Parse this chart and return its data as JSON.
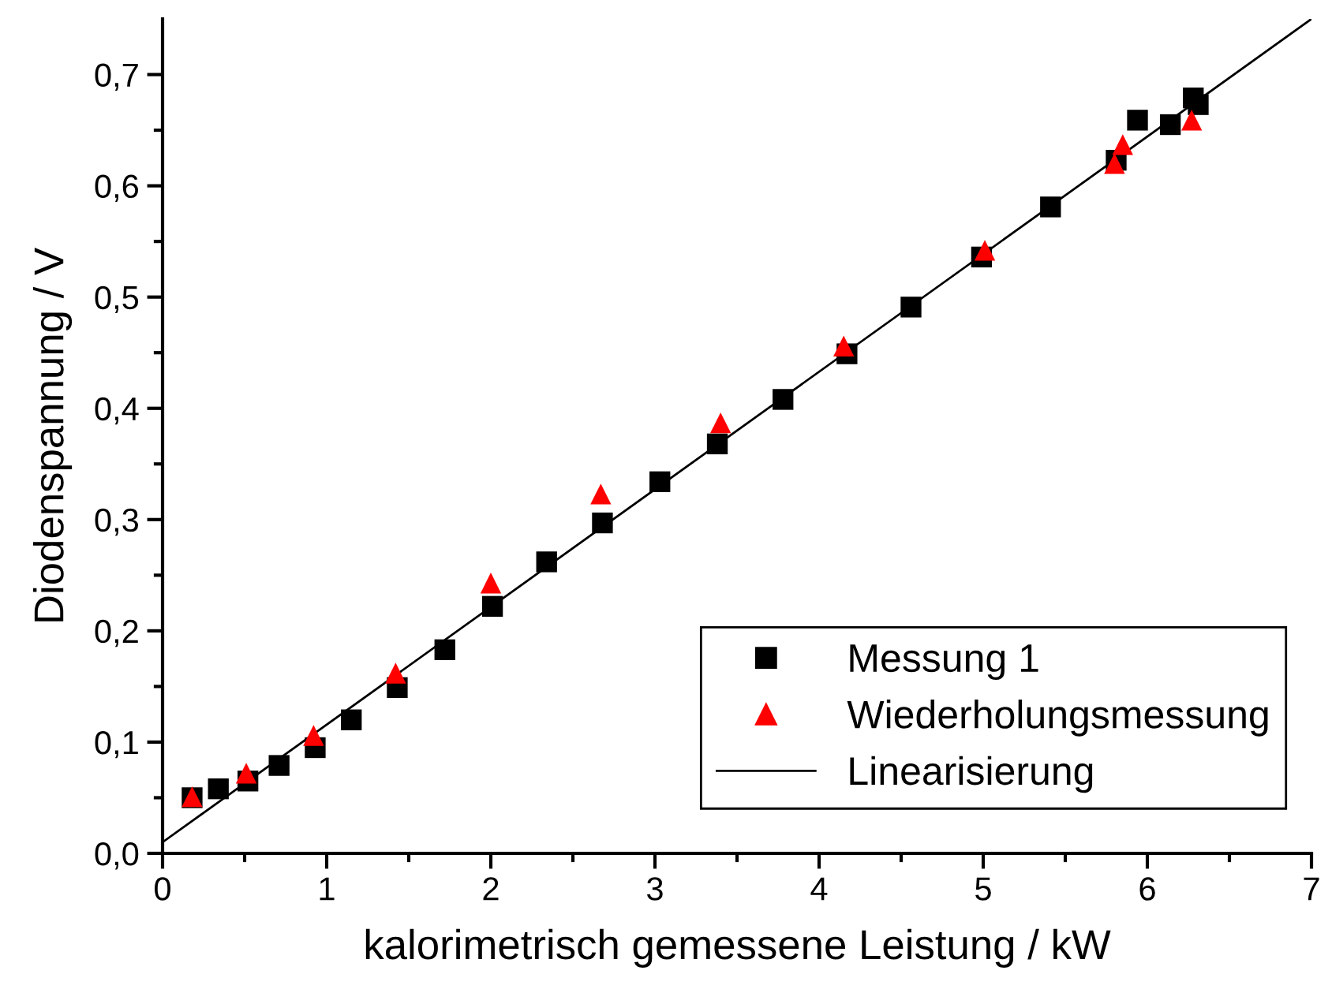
{
  "chart_data": {
    "type": "scatter",
    "xlabel": "kalorimetrisch gemessene Leistung / kW",
    "ylabel": "Diodenspannung / V",
    "series": [
      {
        "name": "Messung 1",
        "color": "#000000",
        "marker": "square",
        "x": [
          0.18,
          0.34,
          0.52,
          0.71,
          0.93,
          1.15,
          1.43,
          1.72,
          2.01,
          2.34,
          2.68,
          3.03,
          3.38,
          3.78,
          4.17,
          4.56,
          4.99,
          5.41,
          5.81,
          5.94,
          6.14,
          6.28,
          6.31
        ],
        "values": [
          0.05,
          0.058,
          0.065,
          0.079,
          0.095,
          0.12,
          0.149,
          0.183,
          0.222,
          0.262,
          0.297,
          0.334,
          0.368,
          0.408,
          0.449,
          0.491,
          0.536,
          0.581,
          0.623,
          0.659,
          0.655,
          0.679,
          0.673
        ]
      },
      {
        "name": "Wiederholungsmessung",
        "color": "#ff0000",
        "marker": "triangle",
        "x": [
          0.18,
          0.51,
          0.92,
          1.42,
          2.0,
          2.67,
          3.4,
          4.15,
          5.01,
          5.8,
          5.85,
          6.27
        ],
        "values": [
          0.051,
          0.072,
          0.106,
          0.162,
          0.243,
          0.323,
          0.387,
          0.456,
          0.542,
          0.62,
          0.637,
          0.659
        ]
      },
      {
        "name": "Linearisierung",
        "type": "line",
        "color": "#000000",
        "marker": "none",
        "line_style": "solid",
        "x": [
          0,
          7
        ],
        "values": [
          0.01,
          0.75
        ]
      }
    ],
    "xlim": [
      0,
      7
    ],
    "ylim": [
      0,
      0.75
    ],
    "xticks": [
      0,
      {
        "value": 0.5,
        "label": null
      },
      1,
      {
        "value": 1.5,
        "label": null
      },
      2,
      {
        "value": 2.5,
        "label": null
      },
      3,
      {
        "value": 3.5,
        "label": null
      },
      4,
      {
        "value": 4.5,
        "label": null
      },
      5,
      {
        "value": 5.5,
        "label": null
      },
      6,
      {
        "value": 6.5,
        "label": null
      },
      7
    ],
    "yticks": [
      {
        "value": 0.0,
        "label": "0,0"
      },
      {
        "value": 0.05,
        "label": null
      },
      {
        "value": 0.1,
        "label": "0,1"
      },
      {
        "value": 0.15,
        "label": null
      },
      {
        "value": 0.2,
        "label": "0,2"
      },
      {
        "value": 0.25,
        "label": null
      },
      {
        "value": 0.3,
        "label": "0,3"
      },
      {
        "value": 0.35,
        "label": null
      },
      {
        "value": 0.4,
        "label": "0,4"
      },
      {
        "value": 0.45,
        "label": null
      },
      {
        "value": 0.5,
        "label": "0,5"
      },
      {
        "value": 0.55,
        "label": null
      },
      {
        "value": 0.6,
        "label": "0,6"
      },
      {
        "value": 0.65,
        "label": null
      },
      {
        "value": 0.7,
        "label": "0,7"
      }
    ],
    "grid": false,
    "legend": "bottom right"
  }
}
